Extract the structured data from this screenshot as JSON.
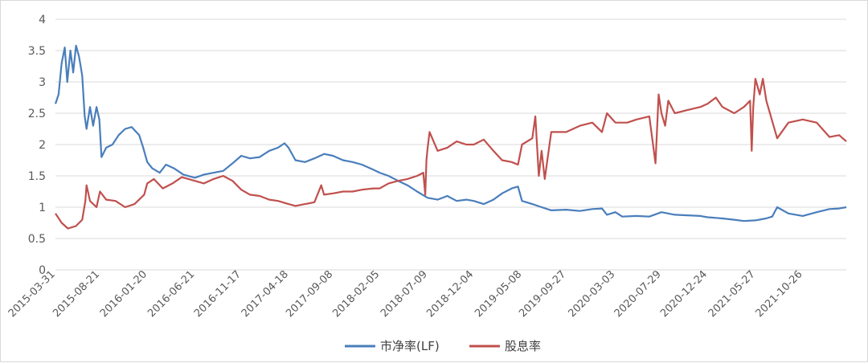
{
  "chart_data": {
    "type": "line",
    "title": "",
    "xlabel": "",
    "ylabel": "",
    "ylim": [
      0,
      4
    ],
    "y_ticks": [
      "0",
      "0.5",
      "1",
      "1.5",
      "2",
      "2.5",
      "3",
      "3.5",
      "4"
    ],
    "grid": "horizontal",
    "legend_position": "bottom",
    "x_ticks": [
      {
        "date": "2015-03-31",
        "label": "2015-03-31"
      },
      {
        "date": "2015-08-21",
        "label": "2015-08-21"
      },
      {
        "date": "2016-01-20",
        "label": "2016-01-20"
      },
      {
        "date": "2016-06-21",
        "label": "2016-06-21"
      },
      {
        "date": "2016-11-17",
        "label": "2016-11-17"
      },
      {
        "date": "2017-04-18",
        "label": "2017-04-18"
      },
      {
        "date": "2017-09-08",
        "label": "2017-09-08"
      },
      {
        "date": "2018-02-05",
        "label": "2018-02-05"
      },
      {
        "date": "2018-07-09",
        "label": "2018-07-09"
      },
      {
        "date": "2018-12-04",
        "label": "2018-12-04"
      },
      {
        "date": "2019-05-08",
        "label": "2019-05-08"
      },
      {
        "date": "2019-09-27",
        "label": "2019-09-27"
      },
      {
        "date": "2020-03-03",
        "label": "2020-03-03"
      },
      {
        "date": "2020-07-29",
        "label": "2020-07-29"
      },
      {
        "date": "2020-12-24",
        "label": "2020-12-24"
      },
      {
        "date": "2021-05-27",
        "label": "2021-05-27"
      },
      {
        "date": "2021-10-26",
        "label": "2021-10-26"
      }
    ],
    "x_end": "2022-03-15",
    "series": [
      {
        "name": "市净率(LF)",
        "color": "#4a7ebb",
        "points": [
          [
            "2015-03-31",
            2.65
          ],
          [
            "2015-04-10",
            2.8
          ],
          [
            "2015-04-20",
            3.3
          ],
          [
            "2015-04-30",
            3.55
          ],
          [
            "2015-05-08",
            3.0
          ],
          [
            "2015-05-18",
            3.5
          ],
          [
            "2015-05-27",
            3.15
          ],
          [
            "2015-06-05",
            3.58
          ],
          [
            "2015-06-15",
            3.4
          ],
          [
            "2015-06-25",
            3.1
          ],
          [
            "2015-07-03",
            2.45
          ],
          [
            "2015-07-09",
            2.25
          ],
          [
            "2015-07-20",
            2.6
          ],
          [
            "2015-07-30",
            2.3
          ],
          [
            "2015-08-10",
            2.6
          ],
          [
            "2015-08-19",
            2.4
          ],
          [
            "2015-08-26",
            1.8
          ],
          [
            "2015-09-10",
            1.95
          ],
          [
            "2015-09-30",
            2.0
          ],
          [
            "2015-10-20",
            2.15
          ],
          [
            "2015-11-10",
            2.25
          ],
          [
            "2015-12-01",
            2.28
          ],
          [
            "2015-12-25",
            2.15
          ],
          [
            "2016-01-07",
            1.95
          ],
          [
            "2016-01-20",
            1.72
          ],
          [
            "2016-02-05",
            1.62
          ],
          [
            "2016-02-29",
            1.55
          ],
          [
            "2016-03-20",
            1.68
          ],
          [
            "2016-04-15",
            1.62
          ],
          [
            "2016-05-15",
            1.52
          ],
          [
            "2016-06-21",
            1.47
          ],
          [
            "2016-07-20",
            1.52
          ],
          [
            "2016-08-20",
            1.55
          ],
          [
            "2016-09-20",
            1.58
          ],
          [
            "2016-10-20",
            1.7
          ],
          [
            "2016-11-17",
            1.82
          ],
          [
            "2016-12-15",
            1.78
          ],
          [
            "2017-01-15",
            1.8
          ],
          [
            "2017-02-15",
            1.9
          ],
          [
            "2017-03-15",
            1.95
          ],
          [
            "2017-04-05",
            2.02
          ],
          [
            "2017-04-18",
            1.95
          ],
          [
            "2017-05-10",
            1.75
          ],
          [
            "2017-06-10",
            1.72
          ],
          [
            "2017-07-10",
            1.78
          ],
          [
            "2017-08-10",
            1.85
          ],
          [
            "2017-09-08",
            1.82
          ],
          [
            "2017-10-10",
            1.75
          ],
          [
            "2017-11-10",
            1.72
          ],
          [
            "2017-12-10",
            1.68
          ],
          [
            "2018-01-15",
            1.6
          ],
          [
            "2018-02-05",
            1.55
          ],
          [
            "2018-03-05",
            1.5
          ],
          [
            "2018-04-05",
            1.42
          ],
          [
            "2018-05-05",
            1.35
          ],
          [
            "2018-06-05",
            1.25
          ],
          [
            "2018-07-09",
            1.15
          ],
          [
            "2018-08-10",
            1.12
          ],
          [
            "2018-09-10",
            1.18
          ],
          [
            "2018-10-10",
            1.1
          ],
          [
            "2018-11-10",
            1.12
          ],
          [
            "2018-12-04",
            1.1
          ],
          [
            "2019-01-05",
            1.05
          ],
          [
            "2019-02-05",
            1.12
          ],
          [
            "2019-03-05",
            1.22
          ],
          [
            "2019-04-05",
            1.3
          ],
          [
            "2019-04-25",
            1.33
          ],
          [
            "2019-05-08",
            1.1
          ],
          [
            "2019-06-10",
            1.05
          ],
          [
            "2019-07-10",
            1.0
          ],
          [
            "2019-08-10",
            0.95
          ],
          [
            "2019-09-27",
            0.96
          ],
          [
            "2019-11-10",
            0.94
          ],
          [
            "2019-12-20",
            0.97
          ],
          [
            "2020-01-20",
            0.98
          ],
          [
            "2020-02-05",
            0.88
          ],
          [
            "2020-03-03",
            0.92
          ],
          [
            "2020-03-25",
            0.85
          ],
          [
            "2020-05-10",
            0.86
          ],
          [
            "2020-06-20",
            0.85
          ],
          [
            "2020-07-29",
            0.92
          ],
          [
            "2020-09-10",
            0.88
          ],
          [
            "2020-10-20",
            0.87
          ],
          [
            "2020-12-01",
            0.86
          ],
          [
            "2020-12-24",
            0.84
          ],
          [
            "2021-02-10",
            0.82
          ],
          [
            "2021-03-20",
            0.8
          ],
          [
            "2021-04-20",
            0.78
          ],
          [
            "2021-05-27",
            0.79
          ],
          [
            "2021-06-30",
            0.82
          ],
          [
            "2021-07-20",
            0.85
          ],
          [
            "2021-08-05",
            1.0
          ],
          [
            "2021-09-10",
            0.9
          ],
          [
            "2021-10-26",
            0.86
          ],
          [
            "2021-12-10",
            0.92
          ],
          [
            "2022-01-20",
            0.97
          ],
          [
            "2022-02-20",
            0.98
          ],
          [
            "2022-03-15",
            1.0
          ]
        ]
      },
      {
        "name": "股息率",
        "color": "#c0504d",
        "points": [
          [
            "2015-03-31",
            0.9
          ],
          [
            "2015-04-20",
            0.75
          ],
          [
            "2015-05-10",
            0.66
          ],
          [
            "2015-06-05",
            0.7
          ],
          [
            "2015-06-25",
            0.8
          ],
          [
            "2015-07-05",
            1.1
          ],
          [
            "2015-07-09",
            1.35
          ],
          [
            "2015-07-20",
            1.1
          ],
          [
            "2015-08-10",
            1.0
          ],
          [
            "2015-08-21",
            1.25
          ],
          [
            "2015-09-10",
            1.12
          ],
          [
            "2015-10-10",
            1.1
          ],
          [
            "2015-11-10",
            1.0
          ],
          [
            "2015-12-10",
            1.05
          ],
          [
            "2016-01-10",
            1.2
          ],
          [
            "2016-01-20",
            1.38
          ],
          [
            "2016-02-10",
            1.45
          ],
          [
            "2016-03-10",
            1.3
          ],
          [
            "2016-04-10",
            1.38
          ],
          [
            "2016-05-10",
            1.48
          ],
          [
            "2016-06-21",
            1.42
          ],
          [
            "2016-07-20",
            1.38
          ],
          [
            "2016-08-20",
            1.45
          ],
          [
            "2016-09-20",
            1.5
          ],
          [
            "2016-10-20",
            1.42
          ],
          [
            "2016-11-17",
            1.28
          ],
          [
            "2016-12-15",
            1.2
          ],
          [
            "2017-01-15",
            1.18
          ],
          [
            "2017-02-15",
            1.12
          ],
          [
            "2017-03-15",
            1.1
          ],
          [
            "2017-04-18",
            1.05
          ],
          [
            "2017-05-10",
            1.02
          ],
          [
            "2017-06-10",
            1.05
          ],
          [
            "2017-07-10",
            1.08
          ],
          [
            "2017-08-01",
            1.35
          ],
          [
            "2017-08-10",
            1.2
          ],
          [
            "2017-09-08",
            1.22
          ],
          [
            "2017-10-10",
            1.25
          ],
          [
            "2017-11-10",
            1.25
          ],
          [
            "2017-12-10",
            1.28
          ],
          [
            "2018-01-15",
            1.3
          ],
          [
            "2018-02-05",
            1.3
          ],
          [
            "2018-03-05",
            1.38
          ],
          [
            "2018-04-05",
            1.42
          ],
          [
            "2018-05-05",
            1.45
          ],
          [
            "2018-06-05",
            1.5
          ],
          [
            "2018-06-25",
            1.55
          ],
          [
            "2018-07-01",
            1.2
          ],
          [
            "2018-07-05",
            1.75
          ],
          [
            "2018-07-09",
            1.95
          ],
          [
            "2018-07-15",
            2.2
          ],
          [
            "2018-08-10",
            1.9
          ],
          [
            "2018-09-10",
            1.95
          ],
          [
            "2018-10-10",
            2.05
          ],
          [
            "2018-11-10",
            2.0
          ],
          [
            "2018-12-04",
            2.0
          ],
          [
            "2019-01-05",
            2.08
          ],
          [
            "2019-02-05",
            1.9
          ],
          [
            "2019-03-05",
            1.75
          ],
          [
            "2019-04-05",
            1.72
          ],
          [
            "2019-04-25",
            1.68
          ],
          [
            "2019-05-08",
            2.0
          ],
          [
            "2019-06-10",
            2.1
          ],
          [
            "2019-06-20",
            2.45
          ],
          [
            "2019-07-01",
            1.5
          ],
          [
            "2019-07-10",
            1.9
          ],
          [
            "2019-07-20",
            1.45
          ],
          [
            "2019-08-10",
            2.2
          ],
          [
            "2019-09-27",
            2.2
          ],
          [
            "2019-11-10",
            2.3
          ],
          [
            "2019-12-20",
            2.35
          ],
          [
            "2020-01-20",
            2.2
          ],
          [
            "2020-02-05",
            2.5
          ],
          [
            "2020-03-03",
            2.35
          ],
          [
            "2020-04-10",
            2.35
          ],
          [
            "2020-05-10",
            2.4
          ],
          [
            "2020-06-20",
            2.45
          ],
          [
            "2020-07-10",
            1.7
          ],
          [
            "2020-07-20",
            2.8
          ],
          [
            "2020-07-29",
            2.5
          ],
          [
            "2020-08-10",
            2.3
          ],
          [
            "2020-08-20",
            2.7
          ],
          [
            "2020-09-10",
            2.5
          ],
          [
            "2020-10-20",
            2.55
          ],
          [
            "2020-12-01",
            2.6
          ],
          [
            "2020-12-24",
            2.65
          ],
          [
            "2021-01-20",
            2.75
          ],
          [
            "2021-02-10",
            2.6
          ],
          [
            "2021-03-20",
            2.5
          ],
          [
            "2021-04-20",
            2.6
          ],
          [
            "2021-05-10",
            2.7
          ],
          [
            "2021-05-15",
            1.9
          ],
          [
            "2021-05-20",
            2.6
          ],
          [
            "2021-05-27",
            3.05
          ],
          [
            "2021-06-10",
            2.8
          ],
          [
            "2021-06-20",
            3.05
          ],
          [
            "2021-07-01",
            2.7
          ],
          [
            "2021-08-05",
            2.1
          ],
          [
            "2021-09-10",
            2.35
          ],
          [
            "2021-10-26",
            2.4
          ],
          [
            "2021-12-10",
            2.35
          ],
          [
            "2022-01-20",
            2.12
          ],
          [
            "2022-02-20",
            2.15
          ],
          [
            "2022-03-15",
            2.05
          ]
        ]
      }
    ]
  }
}
